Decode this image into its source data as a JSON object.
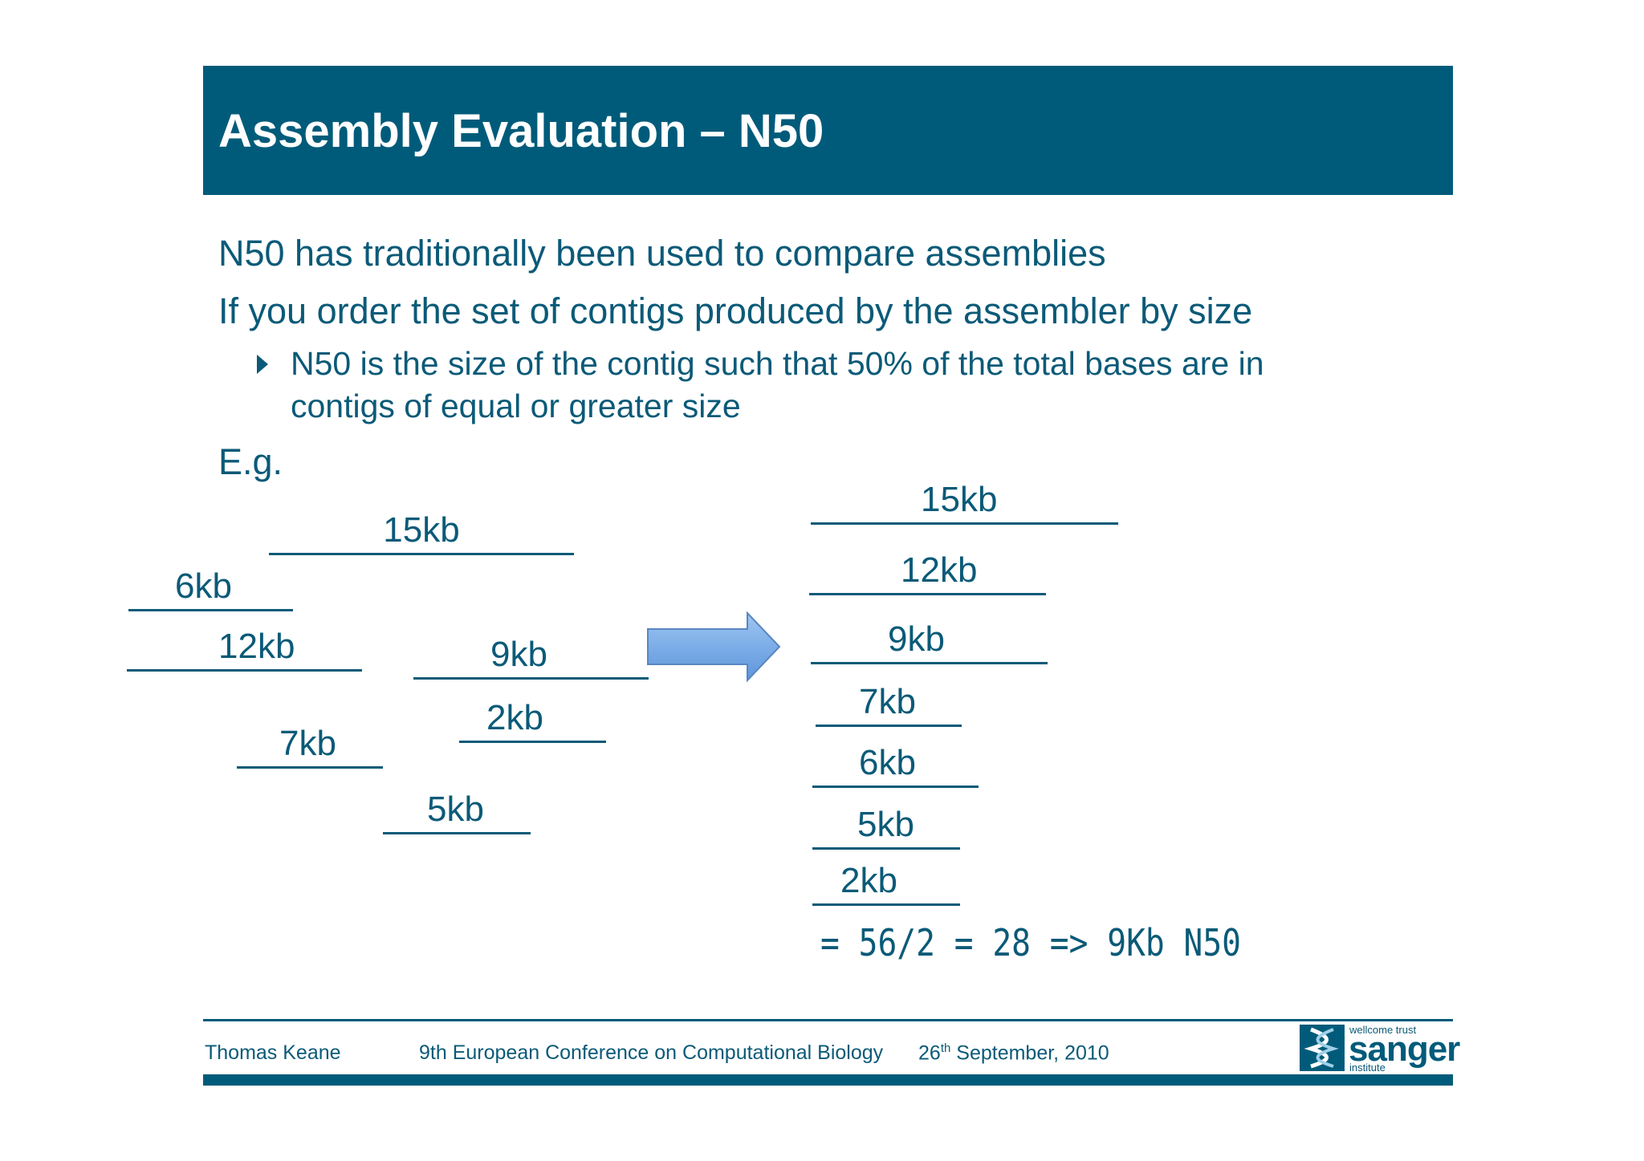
{
  "slide": {
    "title": "Assembly Evaluation – N50",
    "lines": [
      "N50 has traditionally been used to compare assemblies",
      "If you order the set of contigs produced by the assembler by size"
    ],
    "bullet_line1": "N50 is the size of the contig such that 50% of the total bases are in",
    "bullet_line2": "contigs of equal or greater size",
    "eg": "E.g."
  },
  "unsorted_contigs": [
    "15kb",
    "6kb",
    "12kb",
    "9kb",
    "2kb",
    "7kb",
    "5kb"
  ],
  "sorted_contigs": [
    "15kb",
    "12kb",
    "9kb",
    "7kb",
    "6kb",
    "5kb",
    "2kb"
  ],
  "formula": "= 56/2 = 28 => 9Kb N50",
  "footer": {
    "author": "Thomas Keane",
    "conference": "9th European Conference on Computational Biology",
    "date_day": "26",
    "date_suffix": "th",
    "date_rest": " September, 2010"
  },
  "logo": {
    "top": "wellcome trust",
    "name": "sanger",
    "bottom": "institute"
  },
  "colors": {
    "brand": "#005b7a",
    "text": "#0b5a78",
    "arrow_fill": "#7fb2ea"
  }
}
